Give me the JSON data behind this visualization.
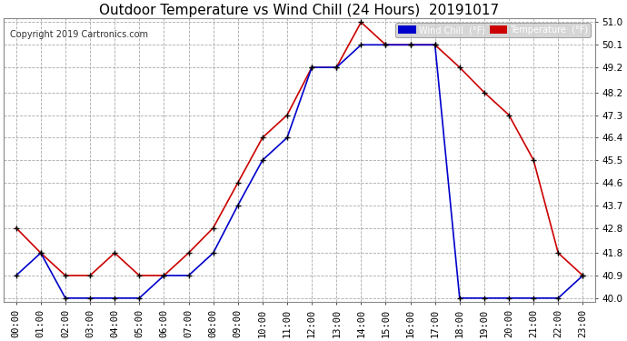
{
  "title": "Outdoor Temperature vs Wind Chill (24 Hours)  20191017",
  "copyright": "Copyright 2019 Cartronics.com",
  "legend_wind_chill": "Wind Chill  (°F)",
  "legend_temperature": "Temperature  (°F)",
  "hours": [
    "00:00",
    "01:00",
    "02:00",
    "03:00",
    "04:00",
    "05:00",
    "06:00",
    "07:00",
    "08:00",
    "09:00",
    "10:00",
    "11:00",
    "12:00",
    "13:00",
    "14:00",
    "15:00",
    "16:00",
    "17:00",
    "18:00",
    "19:00",
    "20:00",
    "21:00",
    "22:00",
    "23:00"
  ],
  "temperature": [
    42.8,
    41.8,
    40.9,
    40.9,
    41.8,
    40.9,
    40.9,
    41.8,
    42.8,
    44.6,
    46.4,
    47.3,
    49.2,
    49.2,
    51.0,
    50.1,
    50.1,
    50.1,
    49.2,
    48.2,
    47.3,
    45.5,
    41.8,
    40.9
  ],
  "wind_chill": [
    40.9,
    41.8,
    40.0,
    40.0,
    40.0,
    40.0,
    40.9,
    40.9,
    41.8,
    43.7,
    45.5,
    46.4,
    49.2,
    49.2,
    50.1,
    50.1,
    50.1,
    50.1,
    40.0,
    40.0,
    40.0,
    40.0,
    40.0,
    40.9
  ],
  "ylim_min": 40.0,
  "ylim_max": 51.0,
  "yticks": [
    40.0,
    40.9,
    41.8,
    42.8,
    43.7,
    44.6,
    45.5,
    46.4,
    47.3,
    48.2,
    49.2,
    50.1,
    51.0
  ],
  "temp_color": "#cc0000",
  "wind_color": "#0000cc",
  "marker_color": "#000000",
  "background_color": "#ffffff",
  "grid_color": "#aaaaaa",
  "title_fontsize": 11,
  "copyright_fontsize": 7,
  "axis_fontsize": 7.5
}
